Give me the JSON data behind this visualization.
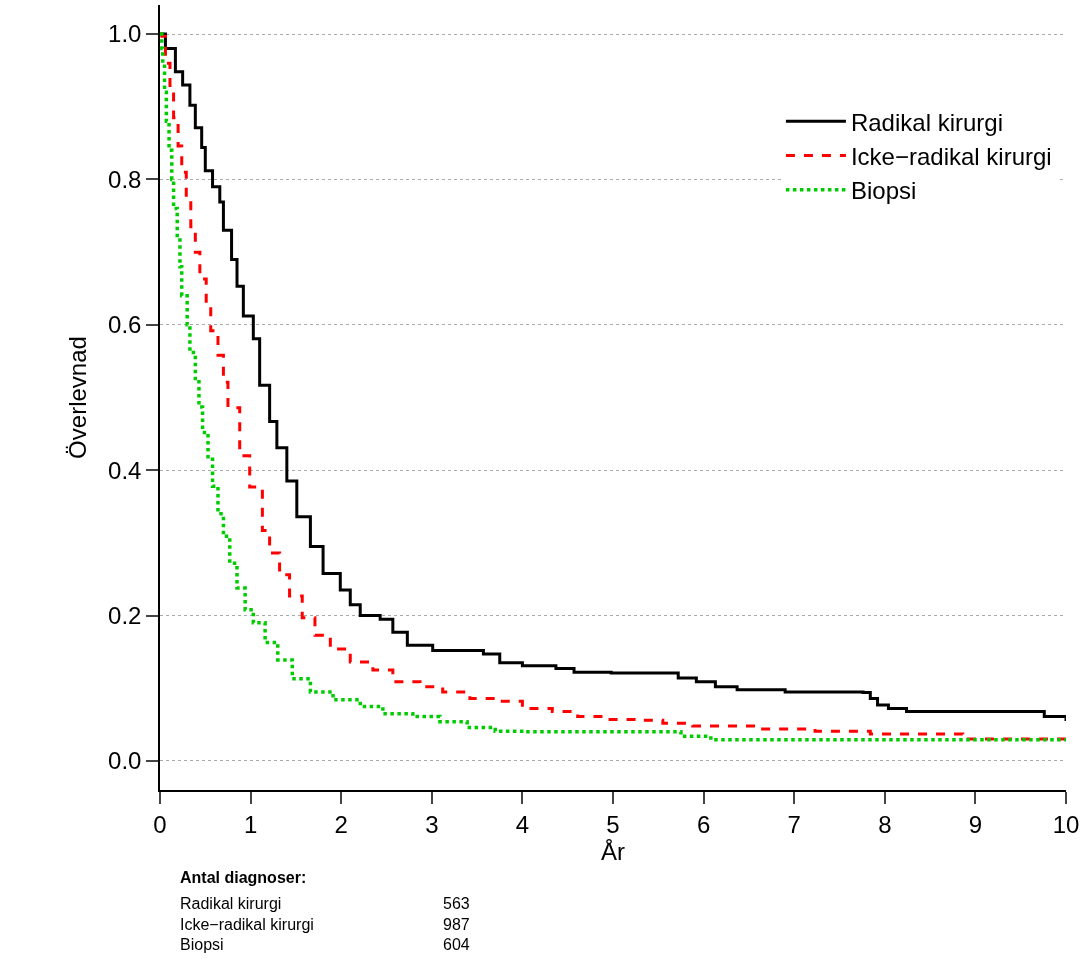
{
  "chart_data": {
    "type": "step",
    "xlabel": "År",
    "ylabel": "Överlevnad",
    "xlim": [
      0,
      10
    ],
    "xticks": [
      0,
      1,
      2,
      3,
      4,
      5,
      6,
      7,
      8,
      9,
      10
    ],
    "ylim": [
      -0.04,
      1.04
    ],
    "yticks": [
      {
        "value": 0,
        "label": "0.0"
      },
      {
        "value": 0.2,
        "label": "0.2"
      },
      {
        "value": 0.4,
        "label": "0.4"
      },
      {
        "value": 0.6,
        "label": "0.6"
      },
      {
        "value": 0.8,
        "label": "0.8"
      },
      {
        "value": 1,
        "label": "1.0"
      }
    ],
    "grid": "y",
    "legend": "top right",
    "series": [
      {
        "name": "Radikal kirurgi",
        "color": "#000000",
        "line_style": "solid",
        "x": [
          0,
          0.06,
          0.17,
          0.25,
          0.33,
          0.39,
          0.46,
          0.5,
          0.58,
          0.66,
          0.7,
          0.79,
          0.85,
          0.92,
          1.03,
          1.1,
          1.21,
          1.29,
          1.4,
          1.51,
          1.66,
          1.8,
          1.99,
          2.1,
          2.21,
          2.43,
          2.57,
          2.73,
          3.01,
          3.57,
          3.75,
          4.0,
          4.37,
          4.57,
          4.98,
          5.53,
          5.72,
          5.92,
          6.13,
          6.37,
          6.9,
          7.76,
          7.84,
          7.92,
          8.04,
          8.24,
          9.72,
          9.76,
          10
        ],
        "values": [
          1.0,
          0.98,
          0.948,
          0.93,
          0.902,
          0.871,
          0.844,
          0.812,
          0.79,
          0.769,
          0.73,
          0.69,
          0.653,
          0.612,
          0.581,
          0.517,
          0.467,
          0.431,
          0.385,
          0.336,
          0.295,
          0.258,
          0.235,
          0.215,
          0.2,
          0.195,
          0.177,
          0.159,
          0.152,
          0.147,
          0.135,
          0.131,
          0.127,
          0.122,
          0.121,
          0.121,
          0.114,
          0.109,
          0.102,
          0.098,
          0.095,
          0.094,
          0.086,
          0.077,
          0.072,
          0.068,
          0.068,
          0.061,
          0.055
        ]
      },
      {
        "name": "Icke−radikal kirurgi",
        "color": "#ff0000",
        "line_style": "dashed",
        "x": [
          0,
          0.02,
          0.06,
          0.11,
          0.15,
          0.2,
          0.24,
          0.29,
          0.34,
          0.39,
          0.44,
          0.51,
          0.56,
          0.64,
          0.7,
          0.75,
          0.88,
          0.99,
          1.13,
          1.21,
          1.32,
          1.43,
          1.57,
          1.71,
          1.88,
          2.1,
          2.35,
          2.57,
          2.87,
          3.12,
          3.42,
          3.72,
          4.0,
          4.33,
          4.61,
          4.93,
          5.26,
          5.55,
          5.88,
          6.6,
          7.23,
          7.84,
          8.86,
          10
        ],
        "values": [
          1.0,
          0.997,
          0.96,
          0.92,
          0.885,
          0.846,
          0.81,
          0.77,
          0.735,
          0.7,
          0.663,
          0.626,
          0.592,
          0.558,
          0.521,
          0.486,
          0.42,
          0.377,
          0.317,
          0.286,
          0.256,
          0.227,
          0.197,
          0.173,
          0.154,
          0.136,
          0.125,
          0.109,
          0.102,
          0.095,
          0.086,
          0.082,
          0.072,
          0.068,
          0.061,
          0.057,
          0.056,
          0.052,
          0.048,
          0.044,
          0.041,
          0.037,
          0.03,
          0.03
        ]
      },
      {
        "name": "Biopsi",
        "color": "#00cd00",
        "line_style": "dotted",
        "x": [
          0,
          0.02,
          0.03,
          0.05,
          0.07,
          0.1,
          0.13,
          0.15,
          0.19,
          0.22,
          0.24,
          0.3,
          0.33,
          0.39,
          0.43,
          0.47,
          0.53,
          0.58,
          0.64,
          0.7,
          0.77,
          0.85,
          0.94,
          1.03,
          1.16,
          1.3,
          1.46,
          1.66,
          1.91,
          2.21,
          2.46,
          2.79,
          3.09,
          3.39,
          3.7,
          4.03,
          5.6,
          5.75,
          6.08,
          10
        ],
        "values": [
          1.0,
          0.98,
          0.96,
          0.92,
          0.88,
          0.84,
          0.8,
          0.76,
          0.72,
          0.68,
          0.64,
          0.6,
          0.562,
          0.526,
          0.487,
          0.452,
          0.415,
          0.378,
          0.34,
          0.309,
          0.272,
          0.238,
          0.208,
          0.19,
          0.163,
          0.139,
          0.113,
          0.095,
          0.084,
          0.075,
          0.065,
          0.061,
          0.054,
          0.046,
          0.041,
          0.04,
          0.04,
          0.034,
          0.029,
          0.029
        ]
      }
    ],
    "annotations": [
      "Antal diagnoser:",
      "Radikal kirurgi",
      "563",
      "Icke−radikal kirurgi",
      "987",
      "Biopsi",
      "604"
    ]
  }
}
